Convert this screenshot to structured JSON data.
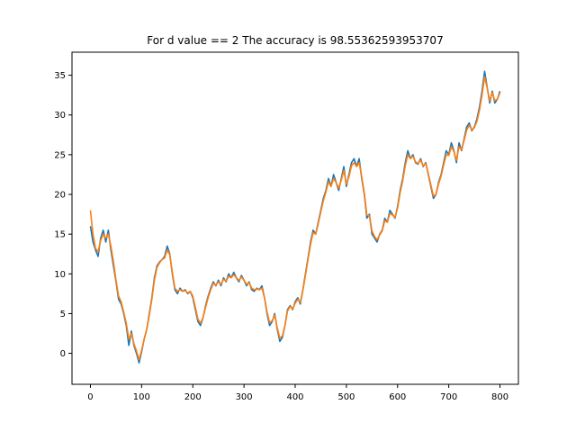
{
  "chart_data": {
    "type": "line",
    "title": "For d value == 2  The accuracy is 98.55362593953707",
    "xlabel": "",
    "ylabel": "",
    "xlim": [
      -36,
      836
    ],
    "ylim": [
      -3.9,
      37.9
    ],
    "x_ticks": [
      0,
      100,
      200,
      300,
      400,
      500,
      600,
      700,
      800
    ],
    "y_ticks": [
      0,
      5,
      10,
      15,
      20,
      25,
      30,
      35
    ],
    "grid": false,
    "legend": "none",
    "series": [
      {
        "color": "#1f77b4",
        "points": [
          [
            0,
            16.0
          ],
          [
            5,
            14.0
          ],
          [
            10,
            13.0
          ],
          [
            15,
            12.2
          ],
          [
            20,
            14.5
          ],
          [
            25,
            15.5
          ],
          [
            30,
            14.0
          ],
          [
            35,
            15.5
          ],
          [
            40,
            13.0
          ],
          [
            45,
            11.0
          ],
          [
            50,
            9.0
          ],
          [
            55,
            6.8
          ],
          [
            60,
            6.2
          ],
          [
            65,
            5.0
          ],
          [
            70,
            3.5
          ],
          [
            75,
            1.0
          ],
          [
            80,
            2.8
          ],
          [
            85,
            1.0
          ],
          [
            90,
            0.0
          ],
          [
            95,
            -1.2
          ],
          [
            100,
            0.2
          ],
          [
            105,
            1.8
          ],
          [
            110,
            3.0
          ],
          [
            115,
            5.0
          ],
          [
            120,
            7.0
          ],
          [
            125,
            9.5
          ],
          [
            130,
            11.0
          ],
          [
            135,
            11.5
          ],
          [
            140,
            11.8
          ],
          [
            145,
            12.2
          ],
          [
            150,
            13.5
          ],
          [
            155,
            12.5
          ],
          [
            160,
            10.0
          ],
          [
            165,
            8.0
          ],
          [
            170,
            7.5
          ],
          [
            175,
            8.2
          ],
          [
            180,
            7.8
          ],
          [
            185,
            8.0
          ],
          [
            190,
            7.5
          ],
          [
            195,
            7.8
          ],
          [
            200,
            7.0
          ],
          [
            205,
            5.5
          ],
          [
            210,
            4.0
          ],
          [
            215,
            3.5
          ],
          [
            220,
            4.5
          ],
          [
            225,
            6.0
          ],
          [
            230,
            7.2
          ],
          [
            235,
            8.2
          ],
          [
            240,
            9.0
          ],
          [
            245,
            8.5
          ],
          [
            250,
            9.2
          ],
          [
            255,
            8.5
          ],
          [
            260,
            9.5
          ],
          [
            265,
            9.0
          ],
          [
            270,
            10.0
          ],
          [
            275,
            9.5
          ],
          [
            280,
            10.2
          ],
          [
            285,
            9.5
          ],
          [
            290,
            9.0
          ],
          [
            295,
            9.8
          ],
          [
            300,
            9.2
          ],
          [
            305,
            8.5
          ],
          [
            310,
            9.0
          ],
          [
            315,
            8.0
          ],
          [
            320,
            7.8
          ],
          [
            325,
            8.2
          ],
          [
            330,
            8.0
          ],
          [
            335,
            8.5
          ],
          [
            340,
            7.0
          ],
          [
            345,
            5.0
          ],
          [
            350,
            3.5
          ],
          [
            355,
            4.0
          ],
          [
            360,
            5.0
          ],
          [
            365,
            3.0
          ],
          [
            370,
            1.5
          ],
          [
            375,
            2.0
          ],
          [
            380,
            3.5
          ],
          [
            385,
            5.5
          ],
          [
            390,
            6.0
          ],
          [
            395,
            5.5
          ],
          [
            400,
            6.5
          ],
          [
            405,
            7.0
          ],
          [
            410,
            6.2
          ],
          [
            415,
            8.0
          ],
          [
            420,
            10.0
          ],
          [
            425,
            12.0
          ],
          [
            430,
            14.0
          ],
          [
            435,
            15.5
          ],
          [
            440,
            15.0
          ],
          [
            445,
            16.5
          ],
          [
            450,
            18.0
          ],
          [
            455,
            19.5
          ],
          [
            460,
            20.5
          ],
          [
            465,
            22.0
          ],
          [
            470,
            21.0
          ],
          [
            475,
            22.5
          ],
          [
            480,
            21.5
          ],
          [
            485,
            20.5
          ],
          [
            490,
            22.0
          ],
          [
            495,
            23.5
          ],
          [
            500,
            21.0
          ],
          [
            505,
            22.5
          ],
          [
            510,
            24.0
          ],
          [
            515,
            24.5
          ],
          [
            520,
            23.5
          ],
          [
            525,
            24.5
          ],
          [
            530,
            22.0
          ],
          [
            535,
            20.0
          ],
          [
            540,
            17.0
          ],
          [
            545,
            17.5
          ],
          [
            550,
            15.0
          ],
          [
            555,
            14.5
          ],
          [
            560,
            14.0
          ],
          [
            565,
            15.0
          ],
          [
            570,
            15.5
          ],
          [
            575,
            17.0
          ],
          [
            580,
            16.5
          ],
          [
            585,
            18.0
          ],
          [
            590,
            17.5
          ],
          [
            595,
            17.0
          ],
          [
            600,
            18.5
          ],
          [
            605,
            20.5
          ],
          [
            610,
            22.0
          ],
          [
            615,
            24.0
          ],
          [
            620,
            25.5
          ],
          [
            625,
            24.5
          ],
          [
            630,
            25.0
          ],
          [
            635,
            24.0
          ],
          [
            640,
            23.8
          ],
          [
            645,
            24.5
          ],
          [
            650,
            23.5
          ],
          [
            655,
            24.0
          ],
          [
            660,
            22.5
          ],
          [
            665,
            21.0
          ],
          [
            670,
            19.5
          ],
          [
            675,
            20.0
          ],
          [
            680,
            21.5
          ],
          [
            685,
            22.5
          ],
          [
            690,
            24.0
          ],
          [
            695,
            25.5
          ],
          [
            700,
            25.0
          ],
          [
            705,
            26.5
          ],
          [
            710,
            25.5
          ],
          [
            715,
            24.0
          ],
          [
            720,
            26.5
          ],
          [
            725,
            25.5
          ],
          [
            730,
            27.0
          ],
          [
            735,
            28.5
          ],
          [
            740,
            29.0
          ],
          [
            745,
            28.0
          ],
          [
            750,
            28.5
          ],
          [
            755,
            29.5
          ],
          [
            760,
            31.0
          ],
          [
            765,
            33.0
          ],
          [
            770,
            35.5
          ],
          [
            775,
            33.5
          ],
          [
            780,
            31.5
          ],
          [
            785,
            33.0
          ],
          [
            790,
            31.5
          ],
          [
            795,
            32.0
          ],
          [
            800,
            33.0
          ]
        ]
      },
      {
        "color": "#ff7f0e",
        "points": [
          [
            0,
            18.0
          ],
          [
            5,
            15.0
          ],
          [
            10,
            13.2
          ],
          [
            15,
            12.8
          ],
          [
            20,
            14.2
          ],
          [
            25,
            15.0
          ],
          [
            30,
            14.5
          ],
          [
            35,
            15.0
          ],
          [
            40,
            13.5
          ],
          [
            45,
            11.5
          ],
          [
            50,
            9.2
          ],
          [
            55,
            7.2
          ],
          [
            60,
            6.5
          ],
          [
            65,
            5.2
          ],
          [
            70,
            3.8
          ],
          [
            75,
            1.8
          ],
          [
            80,
            2.5
          ],
          [
            85,
            1.2
          ],
          [
            90,
            0.3
          ],
          [
            95,
            -0.8
          ],
          [
            100,
            0.4
          ],
          [
            105,
            1.8
          ],
          [
            110,
            3.0
          ],
          [
            115,
            4.8
          ],
          [
            120,
            6.8
          ],
          [
            125,
            9.2
          ],
          [
            130,
            10.8
          ],
          [
            135,
            11.4
          ],
          [
            140,
            11.8
          ],
          [
            145,
            12.0
          ],
          [
            150,
            13.0
          ],
          [
            155,
            12.4
          ],
          [
            160,
            10.2
          ],
          [
            165,
            8.2
          ],
          [
            170,
            7.8
          ],
          [
            175,
            8.0
          ],
          [
            180,
            7.8
          ],
          [
            185,
            7.9
          ],
          [
            190,
            7.6
          ],
          [
            195,
            7.8
          ],
          [
            200,
            7.2
          ],
          [
            205,
            5.8
          ],
          [
            210,
            4.3
          ],
          [
            215,
            3.8
          ],
          [
            220,
            4.5
          ],
          [
            225,
            5.8
          ],
          [
            230,
            7.0
          ],
          [
            235,
            8.0
          ],
          [
            240,
            8.8
          ],
          [
            245,
            8.6
          ],
          [
            250,
            9.0
          ],
          [
            255,
            8.7
          ],
          [
            260,
            9.3
          ],
          [
            265,
            9.1
          ],
          [
            270,
            9.7
          ],
          [
            275,
            9.5
          ],
          [
            280,
            9.9
          ],
          [
            285,
            9.5
          ],
          [
            290,
            9.2
          ],
          [
            295,
            9.6
          ],
          [
            300,
            9.2
          ],
          [
            305,
            8.7
          ],
          [
            310,
            8.9
          ],
          [
            315,
            8.2
          ],
          [
            320,
            8.0
          ],
          [
            325,
            8.1
          ],
          [
            330,
            8.0
          ],
          [
            335,
            8.2
          ],
          [
            340,
            7.0
          ],
          [
            345,
            5.2
          ],
          [
            350,
            3.9
          ],
          [
            355,
            4.1
          ],
          [
            360,
            4.8
          ],
          [
            365,
            3.2
          ],
          [
            370,
            1.9
          ],
          [
            375,
            2.2
          ],
          [
            380,
            3.5
          ],
          [
            385,
            5.3
          ],
          [
            390,
            5.9
          ],
          [
            395,
            5.6
          ],
          [
            400,
            6.3
          ],
          [
            405,
            6.8
          ],
          [
            410,
            6.4
          ],
          [
            415,
            7.9
          ],
          [
            420,
            9.8
          ],
          [
            425,
            11.8
          ],
          [
            430,
            13.7
          ],
          [
            435,
            15.2
          ],
          [
            440,
            15.0
          ],
          [
            445,
            16.3
          ],
          [
            450,
            17.8
          ],
          [
            455,
            19.2
          ],
          [
            460,
            20.3
          ],
          [
            465,
            21.6
          ],
          [
            470,
            21.0
          ],
          [
            475,
            22.0
          ],
          [
            480,
            21.5
          ],
          [
            485,
            20.8
          ],
          [
            490,
            21.8
          ],
          [
            495,
            23.0
          ],
          [
            500,
            21.3
          ],
          [
            505,
            22.2
          ],
          [
            510,
            23.6
          ],
          [
            515,
            24.0
          ],
          [
            520,
            23.5
          ],
          [
            525,
            24.0
          ],
          [
            530,
            22.2
          ],
          [
            535,
            20.2
          ],
          [
            540,
            17.4
          ],
          [
            545,
            17.3
          ],
          [
            550,
            15.4
          ],
          [
            555,
            14.7
          ],
          [
            560,
            14.3
          ],
          [
            565,
            14.9
          ],
          [
            570,
            15.4
          ],
          [
            575,
            16.7
          ],
          [
            580,
            16.5
          ],
          [
            585,
            17.6
          ],
          [
            590,
            17.4
          ],
          [
            595,
            17.1
          ],
          [
            600,
            18.3
          ],
          [
            605,
            20.2
          ],
          [
            610,
            21.7
          ],
          [
            615,
            23.6
          ],
          [
            620,
            25.0
          ],
          [
            625,
            24.5
          ],
          [
            630,
            24.8
          ],
          [
            635,
            24.1
          ],
          [
            640,
            23.9
          ],
          [
            645,
            24.3
          ],
          [
            650,
            23.6
          ],
          [
            655,
            23.9
          ],
          [
            660,
            22.6
          ],
          [
            665,
            21.2
          ],
          [
            670,
            19.8
          ],
          [
            675,
            20.0
          ],
          [
            680,
            21.3
          ],
          [
            685,
            22.3
          ],
          [
            690,
            23.7
          ],
          [
            695,
            25.0
          ],
          [
            700,
            24.9
          ],
          [
            705,
            26.0
          ],
          [
            710,
            25.4
          ],
          [
            715,
            24.3
          ],
          [
            720,
            26.0
          ],
          [
            725,
            25.6
          ],
          [
            730,
            26.8
          ],
          [
            735,
            28.1
          ],
          [
            740,
            28.7
          ],
          [
            745,
            28.1
          ],
          [
            750,
            28.4
          ],
          [
            755,
            29.2
          ],
          [
            760,
            30.6
          ],
          [
            765,
            32.5
          ],
          [
            770,
            34.8
          ],
          [
            775,
            33.4
          ],
          [
            780,
            31.8
          ],
          [
            785,
            32.8
          ],
          [
            790,
            31.8
          ],
          [
            795,
            32.0
          ],
          [
            800,
            32.8
          ]
        ]
      }
    ]
  }
}
